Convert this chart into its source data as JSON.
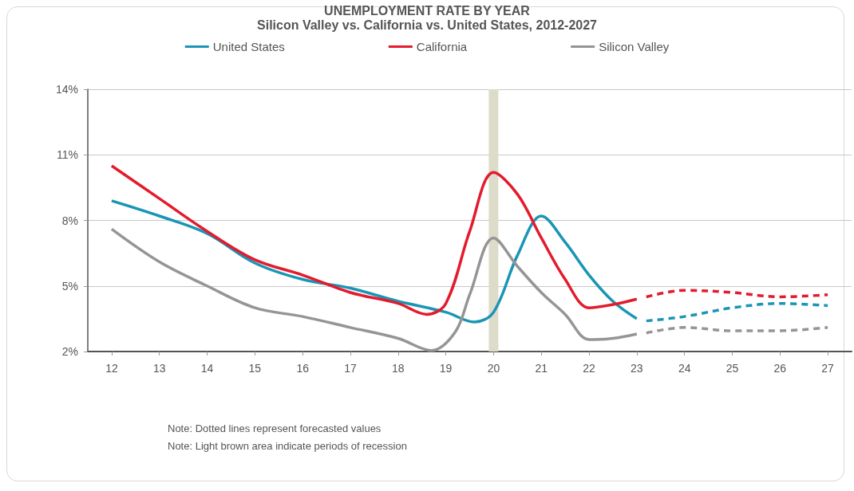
{
  "chart_data": {
    "type": "line",
    "title": "UNEMPLOYMENT RATE BY YEAR",
    "subtitle": "Silicon Valley vs. California vs. United States, 2012-2027",
    "xlim": [
      11.5,
      27.5
    ],
    "xticks": [
      12,
      13,
      14,
      15,
      16,
      17,
      18,
      19,
      20,
      21,
      22,
      23,
      24,
      25,
      26,
      27
    ],
    "ylim": [
      2,
      14
    ],
    "yticks": [
      {
        "value": 2,
        "label": "2%"
      },
      {
        "value": 5,
        "label": "5%"
      },
      {
        "value": 8,
        "label": "8%"
      },
      {
        "value": 11,
        "label": "11%"
      },
      {
        "value": 14,
        "label": "14%"
      }
    ],
    "grid": "y",
    "legend": "top",
    "marker": "none",
    "series": [
      {
        "name": "United States",
        "color": "#1a95b5",
        "line_style": "solid",
        "x": [
          12,
          13,
          14,
          15,
          16,
          17,
          18,
          19,
          19.6,
          20,
          20.5,
          21,
          21.5,
          22,
          22.5,
          23
        ],
        "values": [
          8.9,
          8.2,
          7.4,
          6.05,
          5.3,
          4.9,
          4.3,
          3.8,
          3.35,
          3.8,
          6.4,
          8.2,
          7.0,
          5.5,
          4.3,
          3.5
        ]
      },
      {
        "name": "California",
        "color": "#e31b2d",
        "line_style": "solid",
        "x": [
          12,
          13,
          14,
          15,
          16,
          17,
          18,
          18.6,
          19,
          19.5,
          20,
          20.5,
          21,
          21.5,
          22,
          22.5,
          23
        ],
        "values": [
          10.5,
          9.0,
          7.5,
          6.2,
          5.5,
          4.7,
          4.2,
          3.7,
          4.2,
          7.5,
          10.2,
          9.2,
          7.2,
          5.3,
          4.0,
          4.15,
          4.4
        ]
      },
      {
        "name": "Silicon Valley",
        "color": "#959595",
        "line_style": "solid",
        "x": [
          12,
          13,
          14,
          15,
          16,
          17,
          18,
          18.7,
          19.2,
          19.5,
          20,
          20.5,
          21,
          21.5,
          22,
          22.5,
          23
        ],
        "values": [
          7.6,
          6.1,
          5.0,
          4.0,
          3.6,
          3.1,
          2.6,
          2.05,
          2.9,
          4.6,
          7.2,
          5.9,
          4.7,
          3.7,
          2.55,
          2.6,
          2.8
        ]
      },
      {
        "color": "#1a95b5",
        "line_style": "dashed",
        "x": [
          23.2,
          24,
          25,
          26,
          27
        ],
        "values": [
          3.4,
          3.6,
          4.0,
          4.2,
          4.1
        ]
      },
      {
        "color": "#e31b2d",
        "line_style": "dashed",
        "x": [
          23.2,
          24,
          25,
          26,
          27
        ],
        "values": [
          4.5,
          4.8,
          4.7,
          4.5,
          4.6
        ]
      },
      {
        "color": "#959595",
        "line_style": "dashed",
        "x": [
          23.2,
          24,
          25,
          26,
          27
        ],
        "values": [
          2.85,
          3.1,
          2.95,
          2.95,
          3.1
        ]
      }
    ],
    "bands": [
      {
        "axis": "x",
        "from": 19.9,
        "to": 20.1,
        "color": "#dddbc9"
      }
    ],
    "annotations": [
      "Note: Dotted lines represent forecasted values",
      "Note: Light brown area indicate periods of recession"
    ]
  }
}
